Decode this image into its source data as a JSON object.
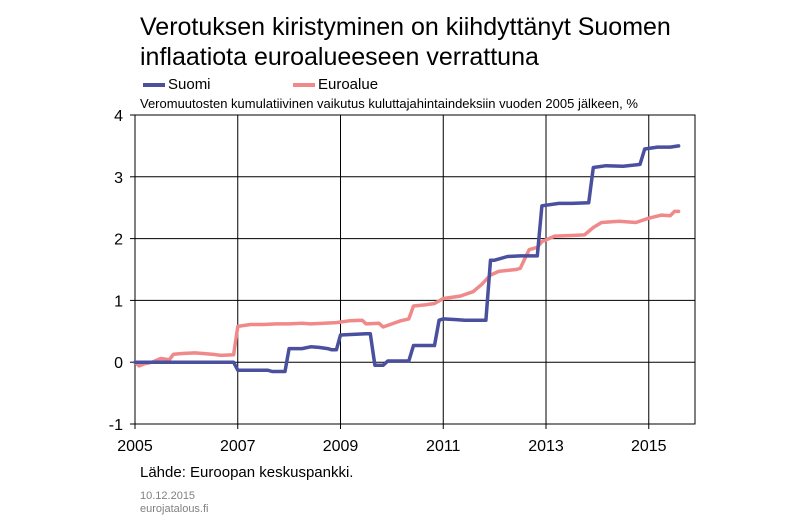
{
  "title_lines": [
    "Verotuksen kiristyminen on kiihdyttänyt Suomen",
    "inflaatiota euroalueeseen  verrattuna"
  ],
  "subtitle": "Veromuutosten kumulatiivinen vaikutus kuluttajahintaindeksiin vuoden 2005 jälkeen, %",
  "source": "Lähde: Euroopan keskuspankki.",
  "footer": {
    "date": "10.12.2015",
    "site": "eurojatalous.fi"
  },
  "chart_data": {
    "type": "line",
    "title": "Verotuksen kiristyminen on kiihdyttänyt Suomen inflaatiota euroalueeseen  verrattuna",
    "subtitle": "Veromuutosten kumulatiivinen vaikutus kuluttajahintaindeksiin vuoden 2005 jälkeen, %",
    "xlabel": "",
    "ylabel": "",
    "xlim": [
      2005,
      2015.9
    ],
    "ylim": [
      -1,
      4
    ],
    "x_ticks": [
      2005,
      2007,
      2009,
      2011,
      2013,
      2015
    ],
    "y_ticks": [
      -1,
      0,
      1,
      2,
      3,
      4
    ],
    "grid": true,
    "legend_position": "top-left",
    "series": [
      {
        "name": "Suomi",
        "color": "#4a4f9e",
        "points": [
          [
            2005.0,
            0
          ],
          [
            2006.92,
            0
          ],
          [
            2007.0,
            -0.13
          ],
          [
            2007.58,
            -0.13
          ],
          [
            2007.67,
            -0.15
          ],
          [
            2007.92,
            -0.15
          ],
          [
            2008.0,
            0.22
          ],
          [
            2008.25,
            0.22
          ],
          [
            2008.42,
            0.25
          ],
          [
            2008.58,
            0.24
          ],
          [
            2008.75,
            0.22
          ],
          [
            2008.83,
            0.2
          ],
          [
            2008.92,
            0.2
          ],
          [
            2009.0,
            0.44
          ],
          [
            2009.5,
            0.46
          ],
          [
            2009.58,
            0.46
          ],
          [
            2009.67,
            -0.05
          ],
          [
            2009.83,
            -0.05
          ],
          [
            2009.92,
            0.02
          ],
          [
            2010.33,
            0.02
          ],
          [
            2010.42,
            0.27
          ],
          [
            2010.83,
            0.27
          ],
          [
            2010.92,
            0.68
          ],
          [
            2011.0,
            0.7
          ],
          [
            2011.25,
            0.69
          ],
          [
            2011.42,
            0.68
          ],
          [
            2011.83,
            0.68
          ],
          [
            2011.92,
            1.65
          ],
          [
            2012.0,
            1.65
          ],
          [
            2012.25,
            1.71
          ],
          [
            2012.5,
            1.72
          ],
          [
            2012.83,
            1.72
          ],
          [
            2012.92,
            2.53
          ],
          [
            2013.25,
            2.57
          ],
          [
            2013.5,
            2.57
          ],
          [
            2013.83,
            2.58
          ],
          [
            2013.92,
            3.15
          ],
          [
            2014.17,
            3.18
          ],
          [
            2014.5,
            3.17
          ],
          [
            2014.83,
            3.2
          ],
          [
            2014.92,
            3.45
          ],
          [
            2015.17,
            3.48
          ],
          [
            2015.42,
            3.48
          ],
          [
            2015.58,
            3.5
          ]
        ]
      },
      {
        "name": "Euroalue",
        "color": "#f08a8a",
        "points": [
          [
            2005.0,
            0
          ],
          [
            2005.08,
            -0.06
          ],
          [
            2005.17,
            -0.03
          ],
          [
            2005.33,
            0.0
          ],
          [
            2005.5,
            0.06
          ],
          [
            2005.67,
            0.04
          ],
          [
            2005.75,
            0.13
          ],
          [
            2005.92,
            0.14
          ],
          [
            2006.17,
            0.15
          ],
          [
            2006.5,
            0.13
          ],
          [
            2006.67,
            0.11
          ],
          [
            2006.92,
            0.12
          ],
          [
            2007.0,
            0.58
          ],
          [
            2007.25,
            0.61
          ],
          [
            2007.5,
            0.61
          ],
          [
            2007.75,
            0.62
          ],
          [
            2008.0,
            0.62
          ],
          [
            2008.25,
            0.63
          ],
          [
            2008.42,
            0.62
          ],
          [
            2008.67,
            0.63
          ],
          [
            2008.92,
            0.64
          ],
          [
            2009.17,
            0.67
          ],
          [
            2009.42,
            0.68
          ],
          [
            2009.5,
            0.62
          ],
          [
            2009.75,
            0.63
          ],
          [
            2009.83,
            0.57
          ],
          [
            2010.0,
            0.62
          ],
          [
            2010.17,
            0.67
          ],
          [
            2010.33,
            0.7
          ],
          [
            2010.42,
            0.91
          ],
          [
            2010.67,
            0.93
          ],
          [
            2010.83,
            0.95
          ],
          [
            2011.0,
            1.03
          ],
          [
            2011.33,
            1.07
          ],
          [
            2011.58,
            1.14
          ],
          [
            2011.75,
            1.26
          ],
          [
            2011.92,
            1.41
          ],
          [
            2012.08,
            1.47
          ],
          [
            2012.42,
            1.5
          ],
          [
            2012.5,
            1.52
          ],
          [
            2012.67,
            1.82
          ],
          [
            2012.83,
            1.86
          ],
          [
            2012.92,
            1.95
          ],
          [
            2013.17,
            2.04
          ],
          [
            2013.5,
            2.05
          ],
          [
            2013.75,
            2.06
          ],
          [
            2013.92,
            2.18
          ],
          [
            2014.08,
            2.26
          ],
          [
            2014.42,
            2.28
          ],
          [
            2014.75,
            2.26
          ],
          [
            2015.0,
            2.33
          ],
          [
            2015.25,
            2.38
          ],
          [
            2015.42,
            2.37
          ],
          [
            2015.5,
            2.44
          ],
          [
            2015.58,
            2.44
          ]
        ]
      }
    ]
  }
}
